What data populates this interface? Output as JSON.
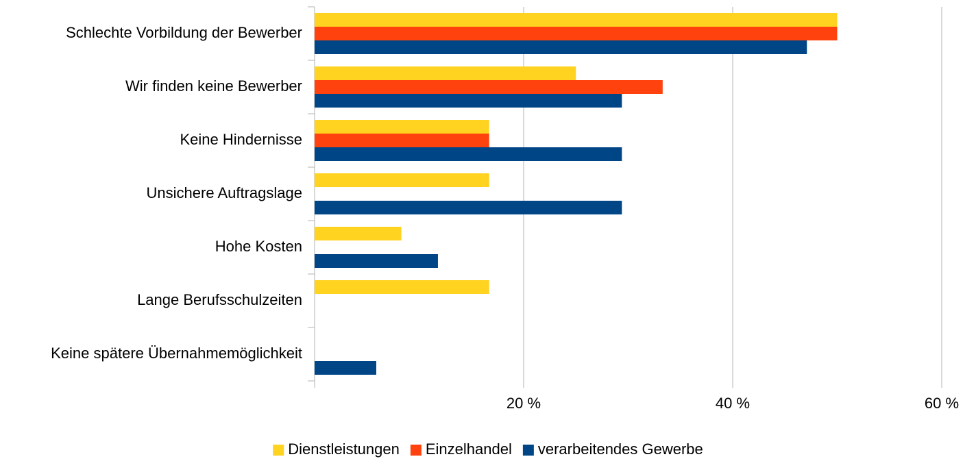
{
  "chart_data": {
    "type": "bar",
    "orientation": "horizontal",
    "categories": [
      "Schlechte Vorbildung der Bewerber",
      "Wir finden keine Bewerber",
      "Keine Hindernisse",
      "Unsichere Auftragslage",
      "Hohe Kosten",
      "Lange Berufsschulzeiten",
      "Keine spätere Übernahmemöglichkeit"
    ],
    "series": [
      {
        "name": "Dienstleistungen",
        "color": "#ffd320",
        "values": [
          50,
          25,
          16.7,
          16.7,
          8.3,
          16.7,
          0
        ]
      },
      {
        "name": "Einzelhandel",
        "color": "#ff420e",
        "values": [
          50,
          33.3,
          16.7,
          0,
          0,
          0,
          0
        ]
      },
      {
        "name": "verarbeitendes Gewerbe",
        "color": "#004586",
        "values": [
          47.1,
          29.4,
          29.4,
          29.4,
          11.8,
          0,
          5.9
        ]
      }
    ],
    "xlim": [
      0,
      60
    ],
    "xticks": [
      {
        "value": 20,
        "label": "20 %"
      },
      {
        "value": 40,
        "label": "40 %"
      },
      {
        "value": 60,
        "label": "60 %"
      }
    ],
    "grid": true,
    "legend": "bottom"
  }
}
